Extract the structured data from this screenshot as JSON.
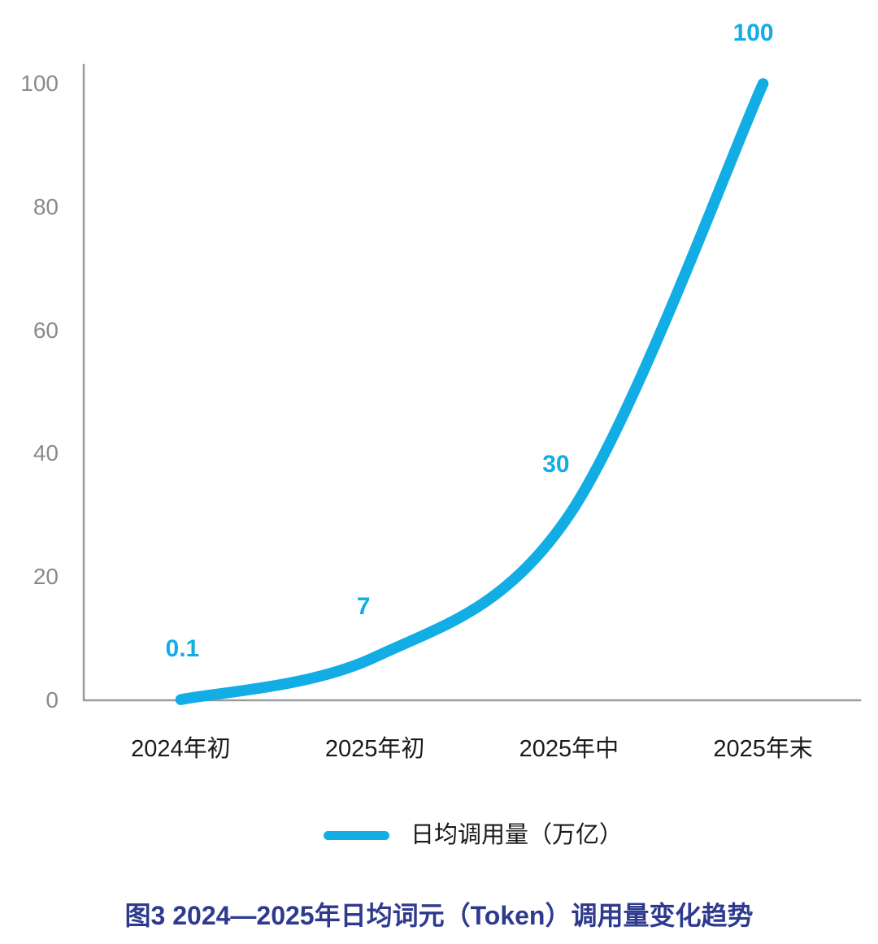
{
  "chart_data": {
    "type": "line",
    "categories": [
      "2024年初",
      "2025年初",
      "2025年中",
      "2025年末"
    ],
    "values": [
      0.1,
      7,
      30,
      100
    ],
    "data_labels": [
      "0.1",
      "7",
      "30",
      "100"
    ],
    "yticks": [
      0,
      20,
      40,
      60,
      80,
      100
    ],
    "ylim": [
      0,
      100
    ],
    "series": [
      {
        "name": "日均调用量（万亿）",
        "values": [
          0.1,
          7,
          30,
          100
        ]
      }
    ],
    "title": "图3 2024—2025年日均词元（Token）调用量变化趋势",
    "xlabel": "",
    "ylabel": "",
    "grid": false,
    "legend_position": "bottom",
    "line_color": "#11ADE4",
    "data_label_color": "#11ADE4",
    "axis_color": "#9b9b9b",
    "ytick_color": "#8a8a8a",
    "xtick_color": "#1a1a1a"
  },
  "legend": {
    "label": "日均调用量（万亿）"
  },
  "caption": {
    "text": "图3 2024—2025年日均词元（Token）调用量变化趋势",
    "color": "#2E3A8D"
  }
}
